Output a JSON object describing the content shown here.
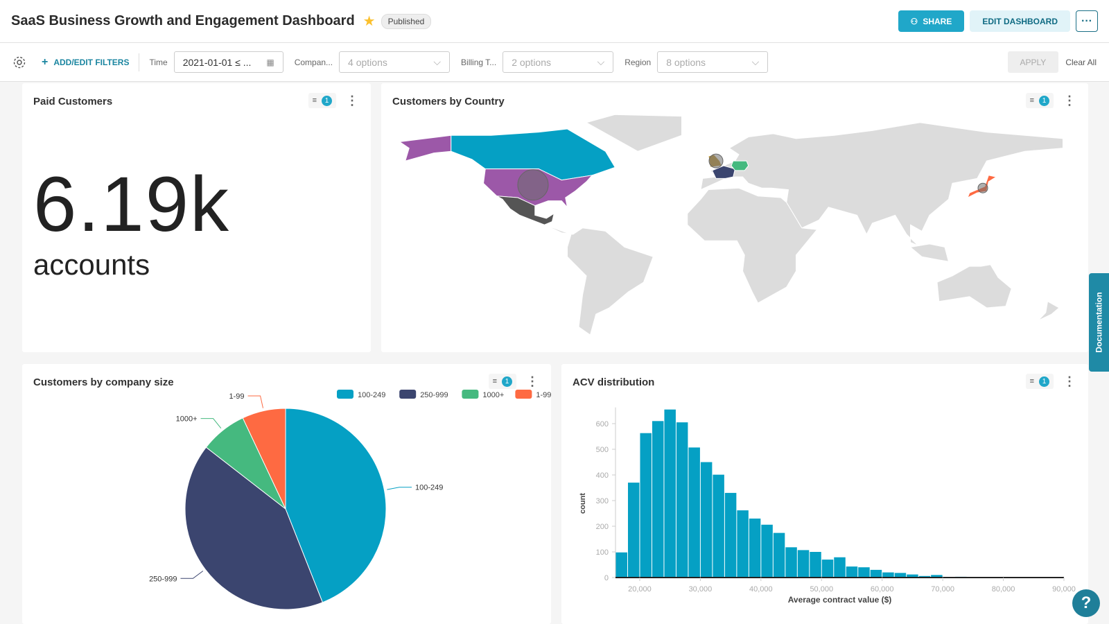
{
  "header": {
    "title": "SaaS Business Growth and Engagement Dashboard",
    "status": "Published",
    "share_label": "SHARE",
    "edit_label": "EDIT DASHBOARD",
    "more_label": "···"
  },
  "filters": {
    "add_label": "ADD/EDIT FILTERS",
    "time_label": "Time",
    "time_value": "2021-01-01 ≤ ...",
    "company_label": "Compan...",
    "company_placeholder": "4 options",
    "billing_label": "Billing T...",
    "billing_placeholder": "2 options",
    "region_label": "Region",
    "region_placeholder": "8 options",
    "apply_label": "APPLY",
    "clear_label": "Clear All"
  },
  "panels": {
    "paid": {
      "title": "Paid Customers",
      "filter_count": "1",
      "value": "6.19k",
      "unit": "accounts"
    },
    "country": {
      "title": "Customers by Country",
      "filter_count": "1",
      "highlighted": [
        {
          "country": "United States",
          "color": "#9c58a8"
        },
        {
          "country": "Canada",
          "color": "#05a0c4"
        },
        {
          "country": "Mexico",
          "color": "#555555"
        },
        {
          "country": "France",
          "color": "#3b456f"
        },
        {
          "country": "Germany",
          "color": "#45b97f"
        },
        {
          "country": "United Kingdom",
          "color": "#c29a3a"
        },
        {
          "country": "Japan",
          "color": "#fe6a42"
        }
      ]
    },
    "size": {
      "title": "Customers by company size",
      "filter_count": "1"
    },
    "acv": {
      "title": "ACV distribution",
      "filter_count": "1"
    }
  },
  "chart_data": [
    {
      "type": "pie",
      "legend_position": "top-right",
      "categories": [
        "100-249",
        "250-999",
        "1000+",
        "1-99"
      ],
      "values": [
        44,
        41.5,
        7.5,
        7
      ],
      "colors": [
        "#05a0c4",
        "#3b456f",
        "#45b97f",
        "#fe6a42"
      ]
    },
    {
      "type": "bar",
      "xlabel": "Average contract value ($)",
      "ylabel": "count",
      "bin_width": 2000,
      "x": [
        16000,
        18000,
        20000,
        22000,
        24000,
        26000,
        28000,
        30000,
        32000,
        34000,
        36000,
        38000,
        40000,
        42000,
        44000,
        46000,
        48000,
        50000,
        52000,
        54000,
        56000,
        58000,
        60000,
        62000,
        64000,
        66000,
        68000,
        70000,
        72000
      ],
      "values": [
        98,
        370,
        563,
        610,
        655,
        605,
        507,
        450,
        401,
        330,
        262,
        230,
        206,
        174,
        118,
        107,
        100,
        70,
        79,
        43,
        40,
        30,
        20,
        18,
        12,
        6,
        10,
        0,
        3
      ],
      "xlim": [
        16000,
        90000
      ],
      "ylim": [
        0,
        655
      ],
      "xticks": [
        "20,000",
        "30,000",
        "40,000",
        "50,000",
        "60,000",
        "70,000",
        "80,000",
        "90,000"
      ],
      "yticks": [
        "0",
        "100",
        "200",
        "300",
        "400",
        "500",
        "600"
      ],
      "color": "#05a0c4"
    }
  ],
  "sidebar": {
    "documentation_label": "Documentation",
    "help_label": "?"
  }
}
